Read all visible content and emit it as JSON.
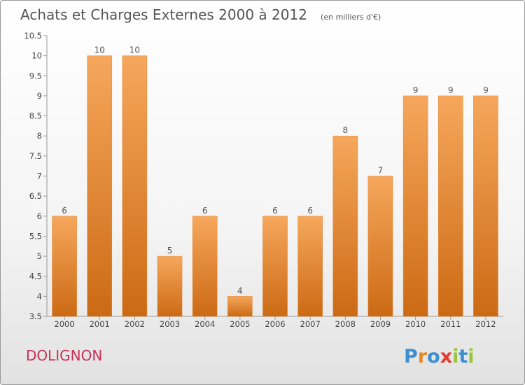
{
  "chart_data": {
    "type": "bar",
    "title": "Achats et Charges Externes 2000 à 2012",
    "subtitle": "(en milliers d'€)",
    "categories": [
      "2000",
      "2001",
      "2002",
      "2003",
      "2004",
      "2005",
      "2006",
      "2007",
      "2008",
      "2009",
      "2010",
      "2011",
      "2012"
    ],
    "values": [
      6,
      10,
      10,
      5,
      6,
      4,
      6,
      6,
      8,
      7,
      9,
      9,
      9
    ],
    "xlabel": "",
    "ylabel": "",
    "ylim": [
      3.5,
      10.5
    ],
    "yticks": [
      3.5,
      4,
      4.5,
      5,
      5.5,
      6,
      6.5,
      7,
      7.5,
      8,
      8.5,
      9,
      9.5,
      10,
      10.5
    ],
    "bar_color": "#f0913c",
    "grid": false,
    "legend": "none"
  },
  "footer": {
    "commune": "DOLIGNON",
    "logo_text": "Proxiti",
    "logo_colors": [
      "#3d8fd1",
      "#e8892c",
      "#3d8fd1",
      "#e23a2e",
      "#9bc43c",
      "#3d8fd1",
      "#9bc43c"
    ]
  }
}
